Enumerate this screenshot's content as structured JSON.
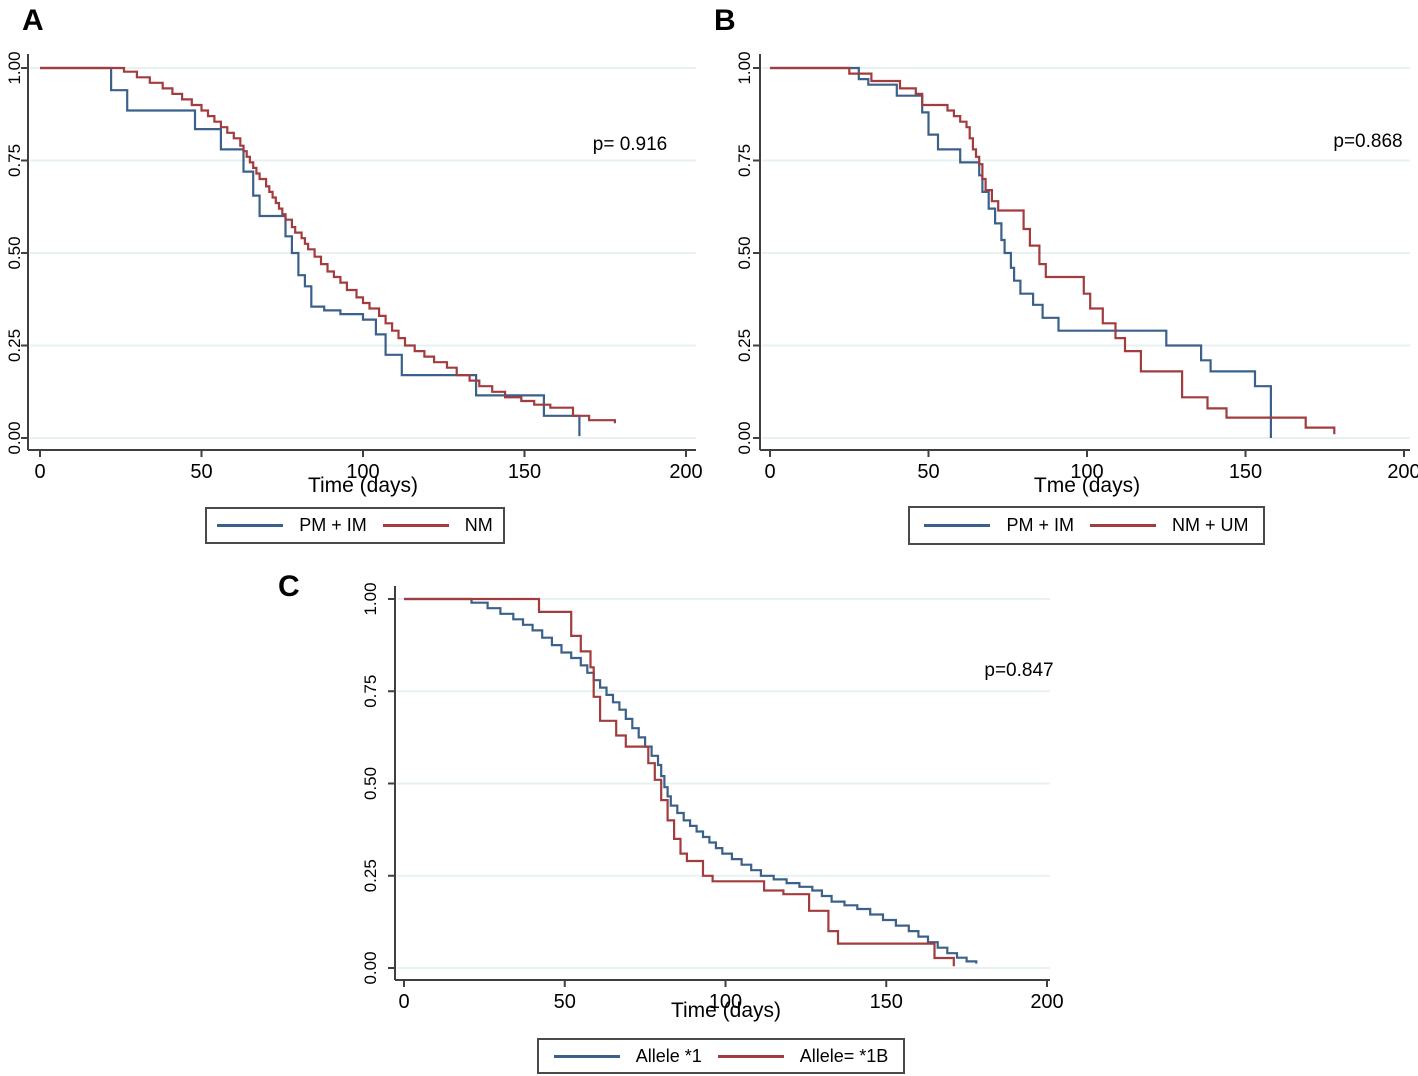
{
  "colors": {
    "blue": "#3b608a",
    "red": "#a23c3e",
    "grid": "#e7f2f0",
    "axis": "#3f3f3f",
    "text": "#000000",
    "background": "#ffffff"
  },
  "chart_data": [
    {
      "panel_label": "A",
      "type": "line",
      "subtype": "kaplan-meier-step",
      "p_value": "p= 0.916",
      "xlabel": "Time (days)",
      "xlim": [
        0,
        200
      ],
      "ylim": [
        0,
        1
      ],
      "grid": true,
      "legend_position": "bottom-center",
      "xticks": [
        0,
        50,
        100,
        150,
        200
      ],
      "ytick_values": [
        1.0,
        0.75,
        0.5,
        0.25,
        0.0
      ],
      "ytick_labels": [
        "1.00",
        "0.75",
        "0.50",
        "0.25",
        "0.00"
      ],
      "series": [
        {
          "name": "PM + IM",
          "color": "#3b608a",
          "points": [
            [
              0,
              1.0
            ],
            [
              22,
              0.94
            ],
            [
              27,
              0.885
            ],
            [
              48,
              0.835
            ],
            [
              56,
              0.78
            ],
            [
              63,
              0.72
            ],
            [
              66,
              0.655
            ],
            [
              68,
              0.6
            ],
            [
              76,
              0.545
            ],
            [
              78,
              0.5
            ],
            [
              80,
              0.44
            ],
            [
              82,
              0.41
            ],
            [
              84,
              0.355
            ],
            [
              88,
              0.345
            ],
            [
              93,
              0.335
            ],
            [
              100,
              0.32
            ],
            [
              104,
              0.28
            ],
            [
              107,
              0.225
            ],
            [
              112,
              0.17
            ],
            [
              135,
              0.115
            ],
            [
              156,
              0.06
            ],
            [
              167,
              0.005
            ]
          ]
        },
        {
          "name": "NM",
          "color": "#a23c3e",
          "points": [
            [
              0,
              1.0
            ],
            [
              26,
              0.99
            ],
            [
              30,
              0.975
            ],
            [
              34,
              0.96
            ],
            [
              38,
              0.945
            ],
            [
              41,
              0.93
            ],
            [
              44,
              0.915
            ],
            [
              47,
              0.9
            ],
            [
              50,
              0.885
            ],
            [
              52,
              0.87
            ],
            [
              54,
              0.855
            ],
            [
              56,
              0.84
            ],
            [
              58,
              0.825
            ],
            [
              60,
              0.81
            ],
            [
              62,
              0.79
            ],
            [
              63,
              0.775
            ],
            [
              64,
              0.76
            ],
            [
              65,
              0.745
            ],
            [
              66,
              0.73
            ],
            [
              67,
              0.715
            ],
            [
              68,
              0.7
            ],
            [
              70,
              0.68
            ],
            [
              71,
              0.665
            ],
            [
              72,
              0.65
            ],
            [
              73,
              0.635
            ],
            [
              74,
              0.62
            ],
            [
              75,
              0.605
            ],
            [
              76,
              0.59
            ],
            [
              78,
              0.57
            ],
            [
              79,
              0.555
            ],
            [
              81,
              0.54
            ],
            [
              82,
              0.525
            ],
            [
              83,
              0.51
            ],
            [
              85,
              0.49
            ],
            [
              87,
              0.47
            ],
            [
              89,
              0.45
            ],
            [
              91,
              0.435
            ],
            [
              93,
              0.42
            ],
            [
              95,
              0.4
            ],
            [
              98,
              0.38
            ],
            [
              100,
              0.365
            ],
            [
              102,
              0.35
            ],
            [
              105,
              0.33
            ],
            [
              107,
              0.31
            ],
            [
              109,
              0.29
            ],
            [
              111,
              0.27
            ],
            [
              113,
              0.25
            ],
            [
              116,
              0.235
            ],
            [
              119,
              0.22
            ],
            [
              122,
              0.205
            ],
            [
              126,
              0.19
            ],
            [
              129,
              0.17
            ],
            [
              133,
              0.155
            ],
            [
              136,
              0.14
            ],
            [
              140,
              0.125
            ],
            [
              144,
              0.11
            ],
            [
              149,
              0.1
            ],
            [
              153,
              0.09
            ],
            [
              158,
              0.082
            ],
            [
              165,
              0.06
            ],
            [
              170,
              0.048
            ],
            [
              178,
              0.04
            ]
          ]
        }
      ]
    },
    {
      "panel_label": "B",
      "type": "line",
      "subtype": "kaplan-meier-step",
      "p_value": "p=0.868",
      "xlabel": "Tme (days)",
      "xlim": [
        0,
        200
      ],
      "ylim": [
        0,
        1
      ],
      "grid": true,
      "legend_position": "bottom-center",
      "xticks": [
        0,
        50,
        100,
        150,
        200
      ],
      "ytick_values": [
        1.0,
        0.75,
        0.5,
        0.25,
        0.0
      ],
      "ytick_labels": [
        "1.00",
        "0.75",
        "0.50",
        "0.25",
        "0.00"
      ],
      "series": [
        {
          "name": "PM + IM",
          "color": "#3b608a",
          "points": [
            [
              0,
              1.0
            ],
            [
              28,
              0.97
            ],
            [
              31,
              0.955
            ],
            [
              40,
              0.925
            ],
            [
              48,
              0.88
            ],
            [
              50,
              0.82
            ],
            [
              53,
              0.78
            ],
            [
              60,
              0.745
            ],
            [
              66,
              0.71
            ],
            [
              67,
              0.665
            ],
            [
              69,
              0.62
            ],
            [
              71,
              0.58
            ],
            [
              73,
              0.535
            ],
            [
              74,
              0.5
            ],
            [
              76,
              0.46
            ],
            [
              77,
              0.425
            ],
            [
              79,
              0.39
            ],
            [
              83,
              0.36
            ],
            [
              86,
              0.325
            ],
            [
              91,
              0.29
            ],
            [
              125,
              0.25
            ],
            [
              136,
              0.21
            ],
            [
              139,
              0.18
            ],
            [
              153,
              0.14
            ],
            [
              158,
              0.0
            ]
          ]
        },
        {
          "name": "NM + UM",
          "color": "#a23c3e",
          "points": [
            [
              0,
              1.0
            ],
            [
              25,
              0.985
            ],
            [
              32,
              0.965
            ],
            [
              41,
              0.945
            ],
            [
              46,
              0.93
            ],
            [
              48,
              0.9
            ],
            [
              56,
              0.885
            ],
            [
              58,
              0.87
            ],
            [
              60,
              0.855
            ],
            [
              62,
              0.84
            ],
            [
              63,
              0.81
            ],
            [
              64,
              0.78
            ],
            [
              65,
              0.76
            ],
            [
              66,
              0.74
            ],
            [
              67,
              0.7
            ],
            [
              68,
              0.67
            ],
            [
              70,
              0.64
            ],
            [
              72,
              0.615
            ],
            [
              80,
              0.565
            ],
            [
              82,
              0.52
            ],
            [
              85,
              0.47
            ],
            [
              87,
              0.435
            ],
            [
              99,
              0.39
            ],
            [
              101,
              0.35
            ],
            [
              105,
              0.31
            ],
            [
              109,
              0.27
            ],
            [
              112,
              0.235
            ],
            [
              117,
              0.18
            ],
            [
              130,
              0.11
            ],
            [
              138,
              0.08
            ],
            [
              144,
              0.055
            ],
            [
              169,
              0.028
            ],
            [
              178,
              0.01
            ]
          ]
        }
      ]
    },
    {
      "panel_label": "C",
      "type": "line",
      "subtype": "kaplan-meier-step",
      "p_value": "p=0.847",
      "xlabel": "Time (days)",
      "xlim": [
        0,
        200
      ],
      "ylim": [
        0,
        1
      ],
      "grid": true,
      "legend_position": "bottom-center",
      "xticks": [
        0,
        50,
        100,
        150,
        200
      ],
      "ytick_values": [
        1.0,
        0.75,
        0.5,
        0.25,
        0.0
      ],
      "ytick_labels": [
        "1.00",
        "0.75",
        "0.50",
        "0.25",
        "0.00"
      ],
      "series": [
        {
          "name": "Allele *1",
          "color": "#3b608a",
          "points": [
            [
              0,
              1.0
            ],
            [
              21,
              0.99
            ],
            [
              26,
              0.975
            ],
            [
              30,
              0.96
            ],
            [
              34,
              0.945
            ],
            [
              37,
              0.93
            ],
            [
              40,
              0.915
            ],
            [
              43,
              0.895
            ],
            [
              46,
              0.875
            ],
            [
              49,
              0.855
            ],
            [
              52,
              0.84
            ],
            [
              55,
              0.82
            ],
            [
              57,
              0.8
            ],
            [
              59,
              0.78
            ],
            [
              61,
              0.76
            ],
            [
              63,
              0.74
            ],
            [
              65,
              0.72
            ],
            [
              67,
              0.7
            ],
            [
              69,
              0.675
            ],
            [
              71,
              0.65
            ],
            [
              73,
              0.625
            ],
            [
              75,
              0.6
            ],
            [
              77,
              0.575
            ],
            [
              79,
              0.55
            ],
            [
              80,
              0.52
            ],
            [
              81,
              0.49
            ],
            [
              82,
              0.465
            ],
            [
              83,
              0.44
            ],
            [
              85,
              0.42
            ],
            [
              87,
              0.4
            ],
            [
              89,
              0.385
            ],
            [
              91,
              0.37
            ],
            [
              93,
              0.355
            ],
            [
              95,
              0.34
            ],
            [
              97,
              0.325
            ],
            [
              99,
              0.31
            ],
            [
              102,
              0.295
            ],
            [
              105,
              0.28
            ],
            [
              108,
              0.265
            ],
            [
              111,
              0.25
            ],
            [
              115,
              0.24
            ],
            [
              119,
              0.23
            ],
            [
              123,
              0.22
            ],
            [
              127,
              0.21
            ],
            [
              130,
              0.195
            ],
            [
              133,
              0.18
            ],
            [
              137,
              0.17
            ],
            [
              141,
              0.16
            ],
            [
              145,
              0.145
            ],
            [
              149,
              0.13
            ],
            [
              153,
              0.115
            ],
            [
              157,
              0.1
            ],
            [
              160,
              0.085
            ],
            [
              163,
              0.07
            ],
            [
              166,
              0.055
            ],
            [
              169,
              0.04
            ],
            [
              172,
              0.028
            ],
            [
              175,
              0.018
            ],
            [
              178,
              0.012
            ]
          ]
        },
        {
          "name": "Allele= *1B",
          "color": "#a23c3e",
          "points": [
            [
              0,
              1.0
            ],
            [
              42,
              0.965
            ],
            [
              52,
              0.9
            ],
            [
              55,
              0.858
            ],
            [
              58,
              0.815
            ],
            [
              59,
              0.735
            ],
            [
              61,
              0.67
            ],
            [
              66,
              0.63
            ],
            [
              69,
              0.6
            ],
            [
              76,
              0.555
            ],
            [
              78,
              0.51
            ],
            [
              80,
              0.455
            ],
            [
              82,
              0.4
            ],
            [
              84,
              0.35
            ],
            [
              86,
              0.31
            ],
            [
              88,
              0.29
            ],
            [
              93,
              0.25
            ],
            [
              96,
              0.235
            ],
            [
              112,
              0.21
            ],
            [
              118,
              0.2
            ],
            [
              126,
              0.155
            ],
            [
              132,
              0.1
            ],
            [
              135,
              0.066
            ],
            [
              165,
              0.027
            ],
            [
              171,
              0.005
            ]
          ]
        }
      ]
    }
  ]
}
